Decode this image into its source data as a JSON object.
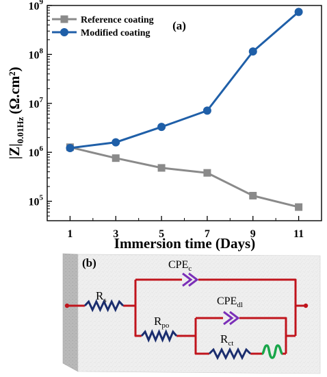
{
  "chart_data": {
    "type": "line",
    "panel_label": "(a)",
    "xlabel": "Immersion time (Days)",
    "ylabel": {
      "main": "|Z|",
      "sub": "0.01Hz",
      "unit": "(Ω.cm²)"
    },
    "x": [
      1,
      3,
      5,
      7,
      9,
      11
    ],
    "xlim": [
      0,
      12
    ],
    "yscale": "log",
    "ylim": [
      40000,
      1000000000
    ],
    "ytick_exponents": [
      5,
      6,
      7,
      8,
      9
    ],
    "ytick_base": "10",
    "grid": false,
    "legend_position": "top-left",
    "series": [
      {
        "name": "Reference coating",
        "color": "#8a8a8a",
        "marker": "square",
        "values": [
          1270000,
          760000,
          480000,
          380000,
          130000,
          76000
        ]
      },
      {
        "name": "Modified coating",
        "color": "#1f5fa8",
        "marker": "circle",
        "values": [
          1220000,
          1600000,
          3300000,
          7100000,
          115000000,
          740000000
        ]
      }
    ]
  },
  "circuit": {
    "panel_label": "(b)",
    "wire_color": "#c0141c",
    "resistor_color": "#1a2d6e",
    "cpe_color": "#7b2fb8",
    "warburg_color": "#19a64a",
    "labels": {
      "rs": {
        "main": "R",
        "sub": "s"
      },
      "cpe_c": {
        "main": "CPE",
        "sub": "c"
      },
      "rpo": {
        "main": "R",
        "sub": "po"
      },
      "cpe_dl": {
        "main": "CPE",
        "sub": "dl"
      },
      "rct": {
        "main": "R",
        "sub": "ct"
      }
    }
  }
}
